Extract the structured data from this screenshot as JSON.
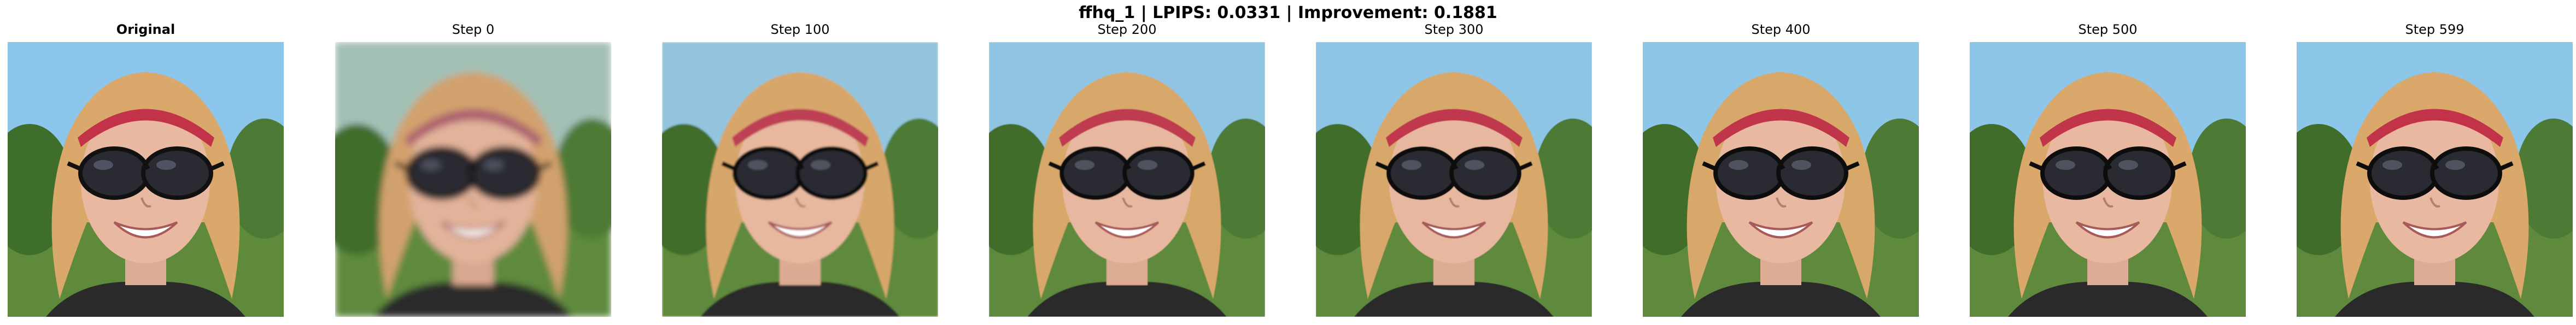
{
  "figure": {
    "title": "ffhq_1 | LPIPS: 0.0331 | Improvement: 0.1881"
  },
  "panels": [
    {
      "label": "Original",
      "bold": true,
      "stage": 1.0
    },
    {
      "label": "Step 0",
      "bold": false,
      "stage": 0.0
    },
    {
      "label": "Step 100",
      "bold": false,
      "stage": 0.75
    },
    {
      "label": "Step 200",
      "bold": false,
      "stage": 0.85
    },
    {
      "label": "Step 300",
      "bold": false,
      "stage": 0.9
    },
    {
      "label": "Step 400",
      "bold": false,
      "stage": 0.94
    },
    {
      "label": "Step 500",
      "bold": false,
      "stage": 0.97
    },
    {
      "label": "Step 599",
      "bold": false,
      "stage": 0.99
    }
  ],
  "colors": {
    "sky": "#8cc6ea",
    "grass": "#5f8a3c",
    "hair": "#d9a86a",
    "skin": "#e8b9a0",
    "headband": "#c2334a",
    "lens": "#2a2a33",
    "shirt": "#2b2b2b"
  }
}
